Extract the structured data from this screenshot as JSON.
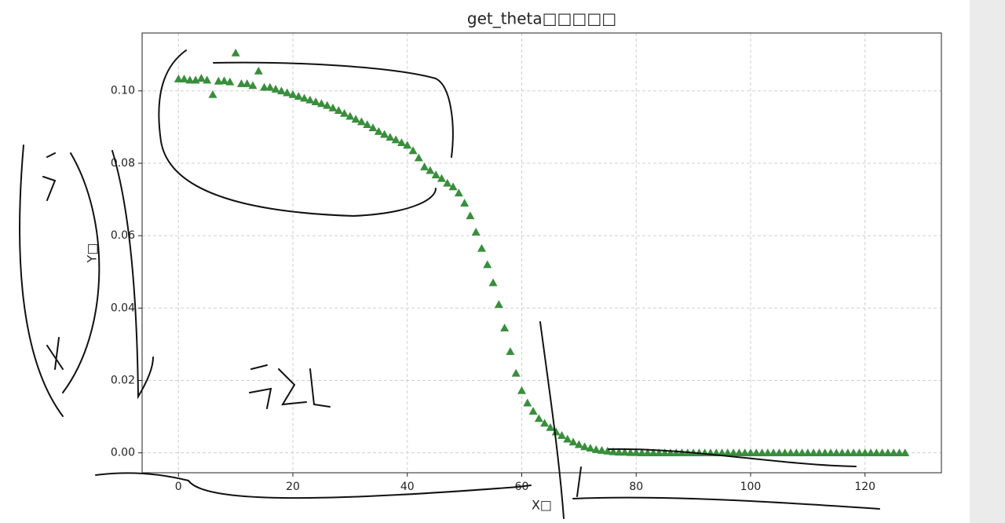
{
  "chart_data": {
    "type": "scatter",
    "title": "get_theta□□□□□",
    "xlabel": "X□",
    "ylabel": "Y□",
    "color": "#388e3c",
    "marker": "triangle",
    "grid": true,
    "xlim": [
      -6.35,
      133.35
    ],
    "ylim": [
      -0.0055,
      0.116
    ],
    "xticks": [
      0,
      20,
      40,
      60,
      80,
      100,
      120
    ],
    "yticks": [
      {
        "value": 0,
        "label": "0.00"
      },
      {
        "value": 0.02,
        "label": "0.02"
      },
      {
        "value": 0.04,
        "label": "0.04"
      },
      {
        "value": 0.06,
        "label": "0.06"
      },
      {
        "value": 0.08,
        "label": "0.08"
      },
      {
        "value": 0.1,
        "label": "0.10"
      }
    ],
    "x": [
      0,
      1,
      2,
      3,
      4,
      5,
      6,
      7,
      8,
      9,
      10,
      11,
      12,
      13,
      14,
      15,
      16,
      17,
      18,
      19,
      20,
      21,
      22,
      23,
      24,
      25,
      26,
      27,
      28,
      29,
      30,
      31,
      32,
      33,
      34,
      35,
      36,
      37,
      38,
      39,
      40,
      41,
      42,
      43,
      44,
      45,
      46,
      47,
      48,
      49,
      50,
      51,
      52,
      53,
      54,
      55,
      56,
      57,
      58,
      59,
      60,
      61,
      62,
      63,
      64,
      65,
      66,
      67,
      68,
      69,
      70,
      71,
      72,
      73,
      74,
      75,
      76,
      77,
      78,
      79,
      80,
      81,
      82,
      83,
      84,
      85,
      86,
      87,
      88,
      89,
      90,
      91,
      92,
      93,
      94,
      95,
      96,
      97,
      98,
      99,
      100,
      101,
      102,
      103,
      104,
      105,
      106,
      107,
      108,
      109,
      110,
      111,
      112,
      113,
      114,
      115,
      116,
      117,
      118,
      119,
      120,
      121,
      122,
      123,
      124,
      125,
      126,
      127
    ],
    "values": [
      0.1033,
      0.1033,
      0.103,
      0.103,
      0.1035,
      0.103,
      0.099,
      0.1027,
      0.1028,
      0.1025,
      0.1105,
      0.102,
      0.102,
      0.1015,
      0.1055,
      0.101,
      0.101,
      0.1005,
      0.1,
      0.0995,
      0.099,
      0.0985,
      0.098,
      0.0975,
      0.097,
      0.0965,
      0.096,
      0.0953,
      0.0946,
      0.0938,
      0.093,
      0.0922,
      0.0915,
      0.0907,
      0.0898,
      0.0888,
      0.088,
      0.0872,
      0.0865,
      0.0857,
      0.085,
      0.0835,
      0.0815,
      0.079,
      0.078,
      0.0768,
      0.0758,
      0.0745,
      0.0735,
      0.0718,
      0.069,
      0.0655,
      0.061,
      0.0565,
      0.052,
      0.047,
      0.041,
      0.0345,
      0.028,
      0.022,
      0.0172,
      0.0138,
      0.0115,
      0.0095,
      0.0082,
      0.007,
      0.0058,
      0.0048,
      0.0038,
      0.003,
      0.0023,
      0.0017,
      0.0013,
      0.0009,
      0.0007,
      0.0005,
      0.0003,
      0.0002,
      0.0002,
      0.0001,
      0.0001,
      0,
      0,
      0,
      0,
      0,
      0,
      0,
      0,
      0,
      0,
      0,
      0,
      0,
      0,
      0,
      0,
      0,
      0,
      0,
      0,
      0,
      0,
      0,
      0,
      0,
      0,
      0,
      0,
      0,
      0,
      0,
      0,
      0,
      0,
      0,
      0,
      0,
      0,
      0,
      0,
      0,
      0,
      0,
      0,
      0,
      0,
      0
    ]
  }
}
